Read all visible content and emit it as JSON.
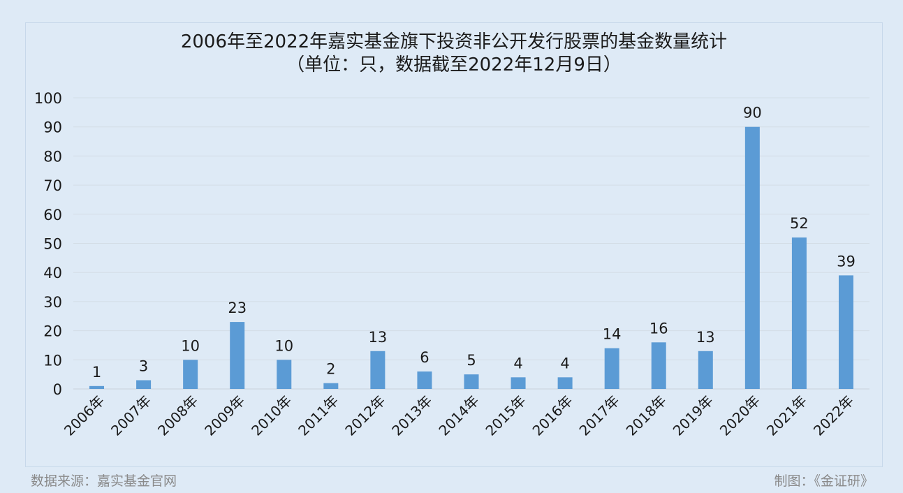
{
  "chart_data": {
    "type": "bar",
    "title": "2006年至2022年嘉实基金旗下投资非公开发行股票的基金数量统计",
    "subtitle": "（单位：只，数据截至2022年12月9日）",
    "xlabel": "",
    "ylabel": "",
    "ylim": [
      0,
      100
    ],
    "yticks": [
      0,
      10,
      20,
      30,
      40,
      50,
      60,
      70,
      80,
      90,
      100
    ],
    "grid": true,
    "categories": [
      "2006年",
      "2007年",
      "2008年",
      "2009年",
      "2010年",
      "2011年",
      "2012年",
      "2013年",
      "2014年",
      "2015年",
      "2016年",
      "2017年",
      "2018年",
      "2019年",
      "2020年",
      "2021年",
      "2022年"
    ],
    "values": [
      1,
      3,
      10,
      23,
      10,
      2,
      13,
      6,
      5,
      4,
      4,
      14,
      16,
      13,
      90,
      52,
      39
    ],
    "bar_color": "#5b9bd5"
  },
  "footer": {
    "source": "数据来源：嘉实基金官网",
    "credit": "制图：《金证研》"
  }
}
